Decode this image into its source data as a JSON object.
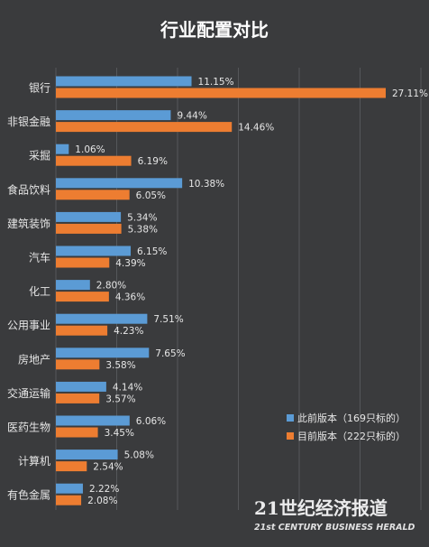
{
  "chart_data": {
    "type": "bar",
    "orientation": "horizontal",
    "title": "行业配置对比",
    "categories": [
      "银行",
      "非银金融",
      "采掘",
      "食品饮料",
      "建筑装饰",
      "汽车",
      "化工",
      "公用事业",
      "房地产",
      "交通运输",
      "医药生物",
      "计算机",
      "有色金属"
    ],
    "series": [
      {
        "name": "此前版本（169只标的）",
        "color": "#5b9bd5",
        "values": [
          11.15,
          9.44,
          1.06,
          10.38,
          5.34,
          6.15,
          2.8,
          7.51,
          7.65,
          4.14,
          6.06,
          5.08,
          2.22
        ],
        "labels": [
          "11.15%",
          "9.44%",
          "1.06%",
          "10.38%",
          "5.34%",
          "6.15%",
          "2.80%",
          "7.51%",
          "7.65%",
          "4.14%",
          "6.06%",
          "5.08%",
          "2.22%"
        ]
      },
      {
        "name": "目前版本（222只标的）",
        "color": "#ed7d31",
        "values": [
          27.11,
          14.46,
          6.19,
          6.05,
          5.38,
          4.39,
          4.36,
          4.23,
          3.58,
          3.57,
          3.45,
          2.54,
          2.08
        ],
        "labels": [
          "27.11%",
          "14.46%",
          "6.19%",
          "6.05%",
          "5.38%",
          "4.39%",
          "4.36%",
          "4.23%",
          "3.58%",
          "3.57%",
          "3.45%",
          "2.54%",
          "2.08%"
        ]
      }
    ],
    "xlim": [
      0,
      30
    ],
    "grid": true,
    "legend_position": "bottom-right"
  },
  "watermark": {
    "cn": "21世纪经济报道",
    "en": "21st CENTURY BUSINESS HERALD"
  },
  "colors": {
    "background": "#3a3b3d",
    "gridline": "#55575a",
    "text": "#e6e6e6"
  }
}
